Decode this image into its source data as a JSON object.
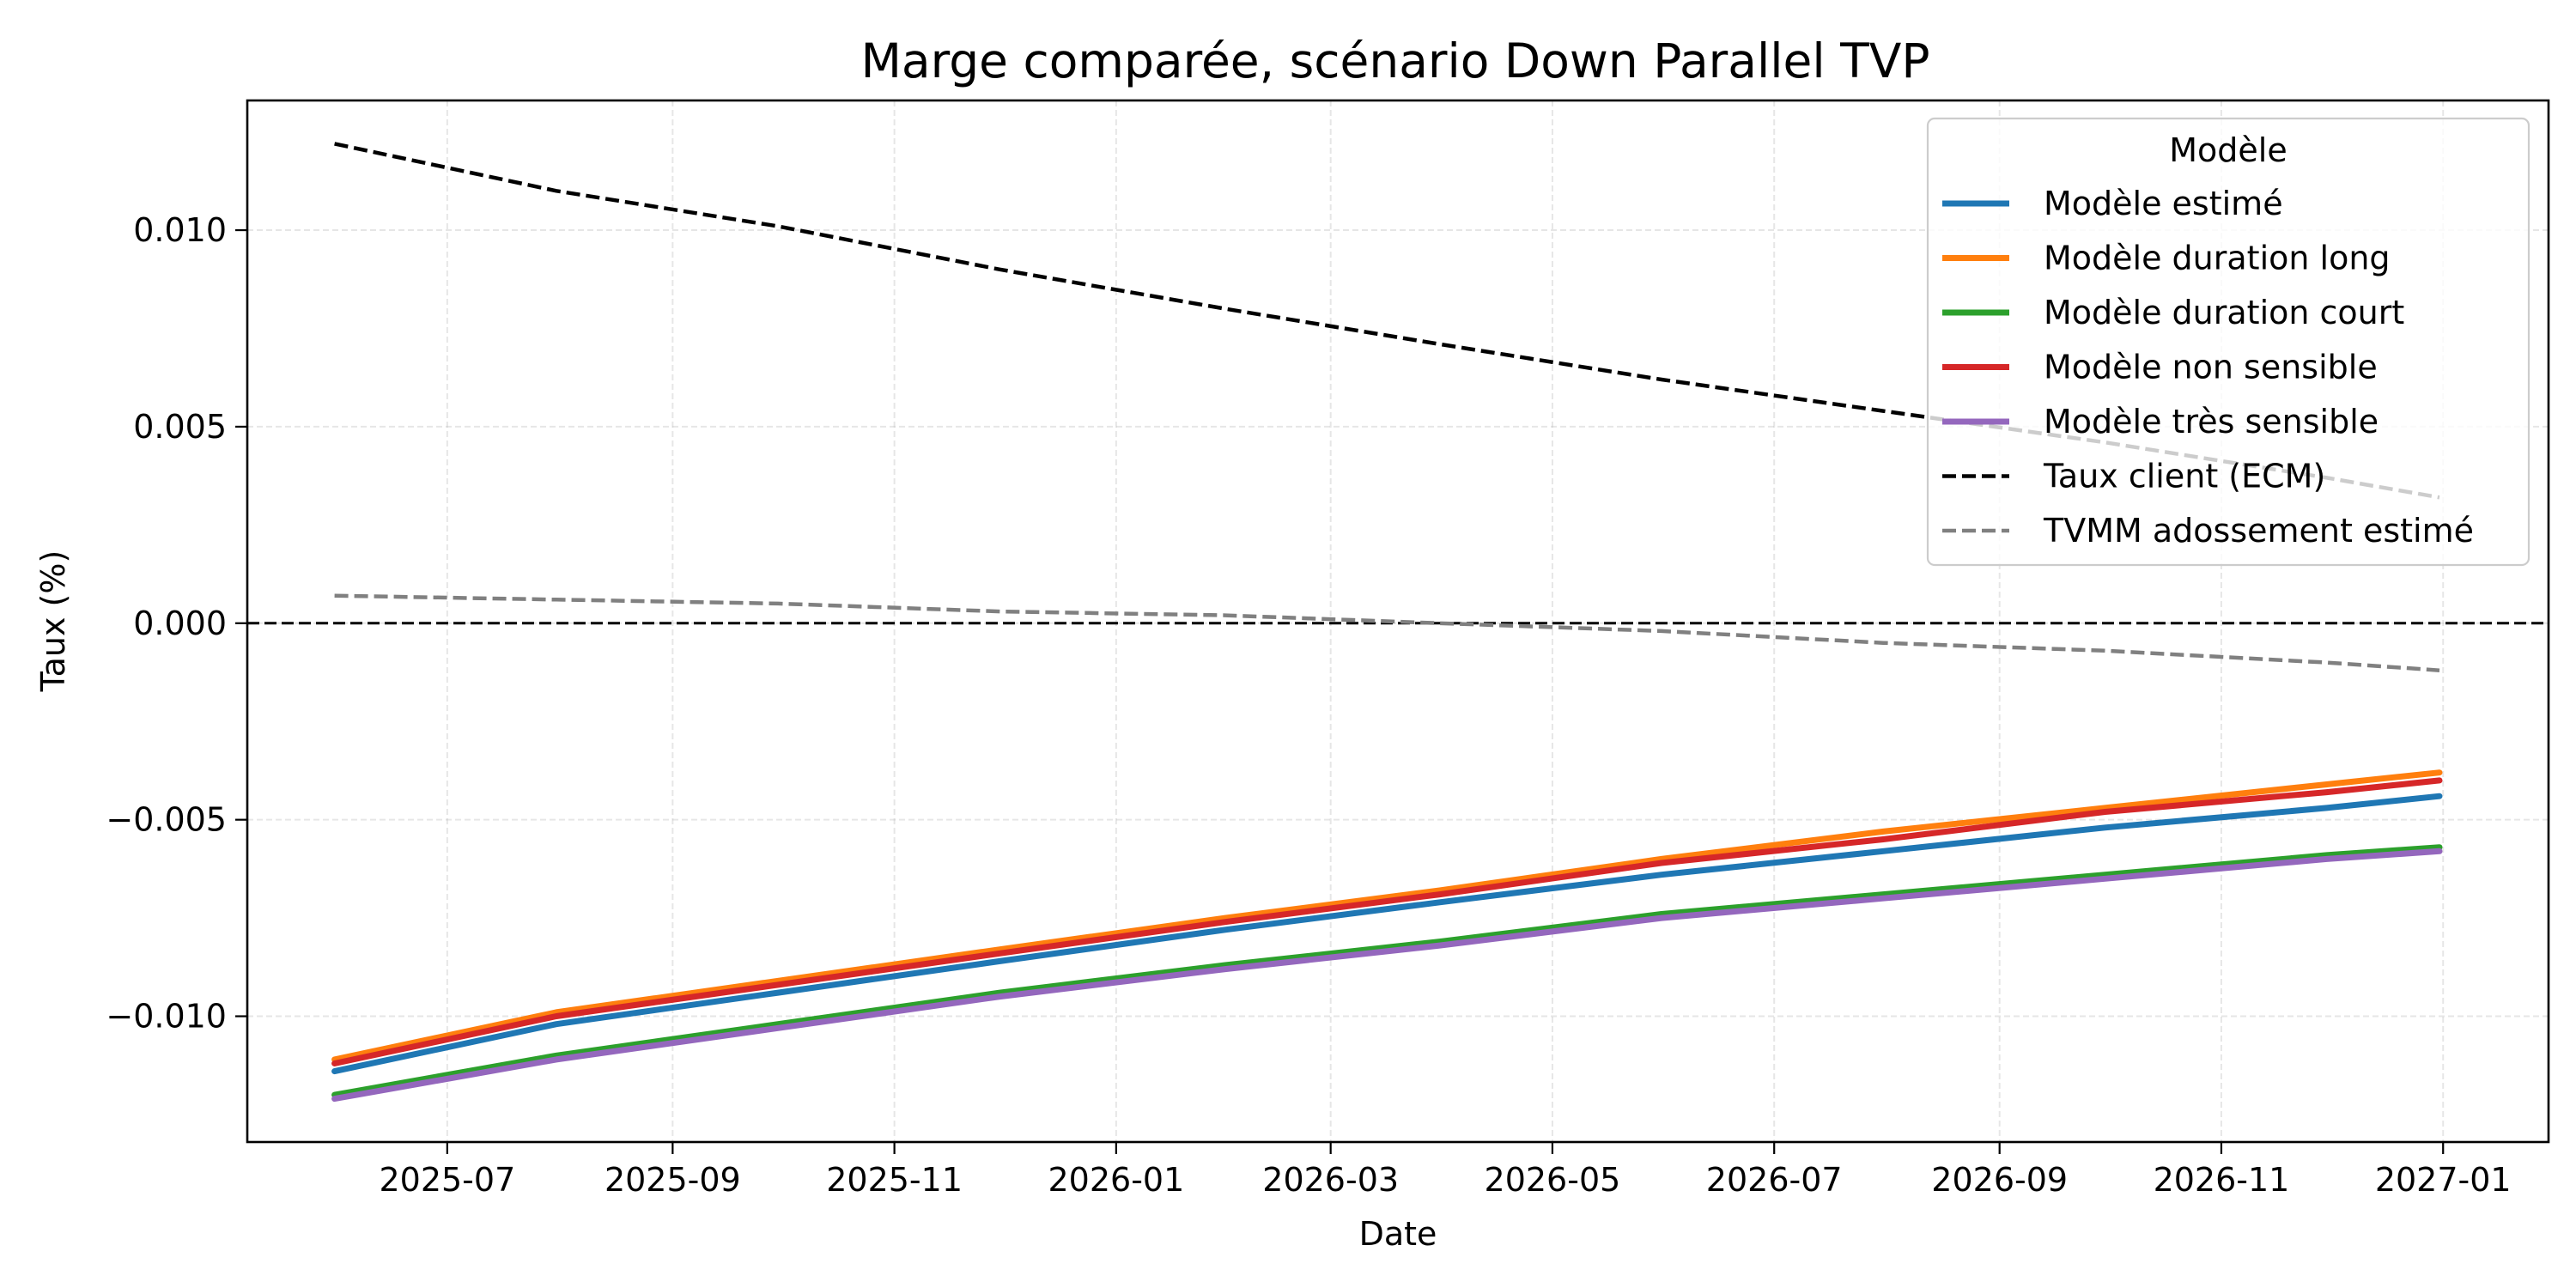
{
  "chart_data": {
    "type": "line",
    "title": "Marge comparée, scénario Down Parallel TVP",
    "xlabel": "Date",
    "ylabel": "Taux (%)",
    "xlim": [
      "2025-05-07",
      "2027-01-30"
    ],
    "ylim": [
      -0.0132,
      0.0133
    ],
    "x_ticks": [
      "2025-07",
      "2025-09",
      "2025-11",
      "2026-01",
      "2026-03",
      "2026-05",
      "2026-07",
      "2026-09",
      "2026-11",
      "2027-01"
    ],
    "y_ticks": [
      0.01,
      0.005,
      0.0,
      -0.005,
      -0.01
    ],
    "y_tick_labels": [
      "0.010",
      "0.005",
      "0.000",
      "−0.005",
      "−0.010"
    ],
    "grid": true,
    "legend": {
      "title": "Modèle",
      "placement": "upper right"
    },
    "x": [
      "2025-05-31",
      "2025-07-31",
      "2025-09-30",
      "2025-11-30",
      "2026-01-31",
      "2026-03-31",
      "2026-05-31",
      "2026-07-31",
      "2026-09-30",
      "2026-11-30",
      "2026-12-31"
    ],
    "series": [
      {
        "name": "Modèle estimé",
        "color": "#1f77b4",
        "style": "solid",
        "values": [
          -0.0114,
          -0.0102,
          -0.0094,
          -0.0086,
          -0.0078,
          -0.0071,
          -0.0064,
          -0.0058,
          -0.0052,
          -0.0047,
          -0.0044
        ]
      },
      {
        "name": "Modèle duration long",
        "color": "#ff7f0e",
        "style": "solid",
        "values": [
          -0.0111,
          -0.0099,
          -0.0091,
          -0.0083,
          -0.0075,
          -0.0068,
          -0.006,
          -0.0053,
          -0.0047,
          -0.0041,
          -0.0038
        ]
      },
      {
        "name": "Modèle duration court",
        "color": "#2ca02c",
        "style": "solid",
        "values": [
          -0.012,
          -0.011,
          -0.0102,
          -0.0094,
          -0.0087,
          -0.0081,
          -0.0074,
          -0.0069,
          -0.0064,
          -0.0059,
          -0.0057
        ]
      },
      {
        "name": "Modèle non sensible",
        "color": "#d62728",
        "style": "solid",
        "values": [
          -0.0112,
          -0.01,
          -0.0092,
          -0.0084,
          -0.0076,
          -0.0069,
          -0.0061,
          -0.0055,
          -0.0048,
          -0.0043,
          -0.004
        ]
      },
      {
        "name": "Modèle très sensible",
        "color": "#9467bd",
        "style": "solid",
        "values": [
          -0.0121,
          -0.0111,
          -0.0103,
          -0.0095,
          -0.0088,
          -0.0082,
          -0.0075,
          -0.007,
          -0.0065,
          -0.006,
          -0.0058
        ]
      },
      {
        "name": "Taux client (ECM)",
        "color": "#000000",
        "style": "dashed",
        "values": [
          0.0122,
          0.011,
          0.0101,
          0.009,
          0.008,
          0.0071,
          0.0062,
          0.0054,
          0.0046,
          0.0037,
          0.0032
        ]
      },
      {
        "name": "TVMM adossement estimé",
        "color": "#808080",
        "style": "dashed",
        "values": [
          0.0007,
          0.0006,
          0.0005,
          0.0003,
          0.0002,
          0.0,
          -0.0002,
          -0.0005,
          -0.0007,
          -0.001,
          -0.0012
        ]
      }
    ],
    "reference_line": {
      "y": 0.0,
      "color": "#000000",
      "style": "dashed"
    }
  }
}
